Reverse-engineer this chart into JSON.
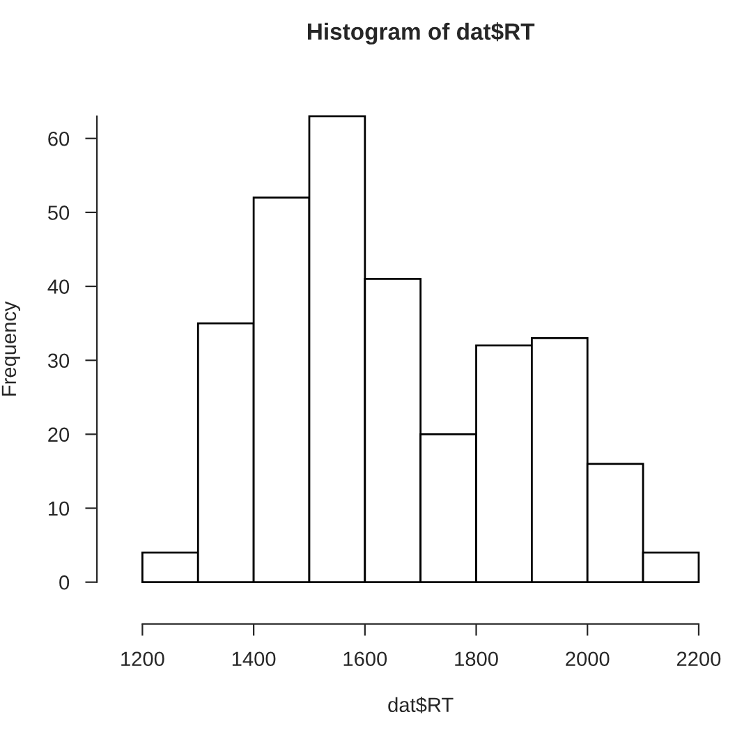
{
  "chart_data": {
    "type": "histogram",
    "title": "Histogram of dat$RT",
    "xlabel": "dat$RT",
    "ylabel": "Frequency",
    "bins": [
      1200,
      1300,
      1400,
      1500,
      1600,
      1700,
      1800,
      1900,
      2000,
      2100,
      2200
    ],
    "values": [
      4,
      35,
      52,
      63,
      41,
      20,
      32,
      33,
      16,
      4
    ],
    "color": "#ffffff",
    "xlim": [
      1200,
      2200
    ],
    "ylim": [
      0,
      63
    ],
    "xticks": [
      1200,
      1400,
      1600,
      1800,
      2000,
      2200
    ],
    "yticks": [
      0,
      10,
      20,
      30,
      40,
      50,
      60
    ],
    "grid": false
  }
}
